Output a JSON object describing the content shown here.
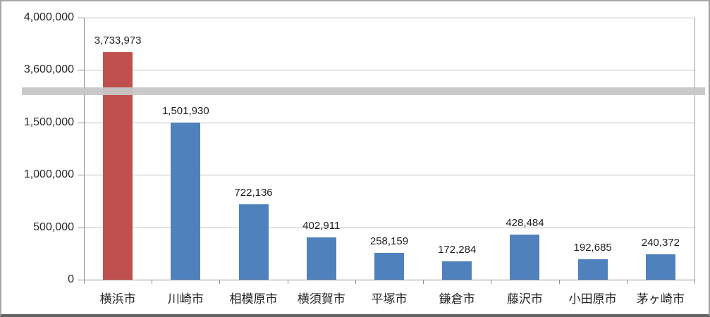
{
  "chart_data": {
    "type": "bar",
    "title": "",
    "categories": [
      "横浜市",
      "川崎市",
      "相模原市",
      "横須賀市",
      "平塚市",
      "鎌倉市",
      "藤沢市",
      "小田原市",
      "茅ヶ崎市"
    ],
    "values": [
      3733973,
      1501930,
      722136,
      402911,
      258159,
      172284,
      428484,
      192685,
      240372
    ],
    "value_labels": [
      "3,733,973",
      "1,501,930",
      "722,136",
      "402,911",
      "258,159",
      "172,284",
      "428,484",
      "192,685",
      "240,372"
    ],
    "y_axis": {
      "tick_labels": [
        "4,000,000",
        "3,600,000",
        "1,500,000",
        "1,000,000",
        "500,000",
        "0"
      ],
      "tick_values": [
        4000000,
        3600000,
        1500000,
        1000000,
        500000,
        0
      ],
      "axis_break": true,
      "break_between_values": [
        1500000,
        3600000
      ]
    },
    "xlabel": "",
    "ylabel": "",
    "legend": false,
    "grid": true,
    "colors": {
      "bar_default": "#4f81bd",
      "bar_highlight": "#c0504d",
      "highlight_index": 0,
      "break_band": "#c6c6c6",
      "gridline": "#c2c2c2",
      "axis": "#8f8f8f",
      "text": "#262626",
      "background": "#ffffff"
    }
  }
}
